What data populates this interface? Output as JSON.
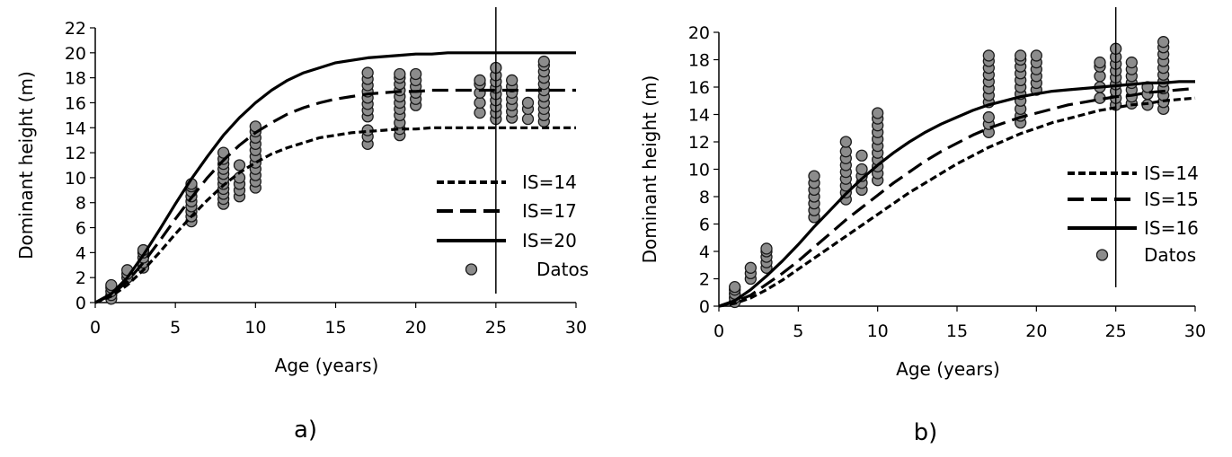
{
  "chart_data": [
    {
      "type": "scatter",
      "caption": "a)",
      "xlabel": "Age (years)",
      "ylabel": "Dominant height (m)",
      "xlim": [
        0,
        30
      ],
      "ylim": [
        0,
        22
      ],
      "xticks": [
        0,
        5,
        10,
        15,
        20,
        25,
        30
      ],
      "yticks": [
        0,
        2,
        4,
        6,
        8,
        10,
        12,
        14,
        16,
        18,
        20,
        22
      ],
      "grid": false,
      "legend": "right",
      "vertical_line_x": 25,
      "curve_x": [
        0,
        1,
        2,
        3,
        4,
        5,
        6,
        7,
        8,
        9,
        10,
        11,
        12,
        13,
        14,
        15,
        16,
        17,
        18,
        19,
        20,
        21,
        22,
        23,
        24,
        25,
        26,
        27,
        28,
        29,
        30
      ],
      "series": [
        {
          "name": "IS=14",
          "style": "dotted",
          "values": [
            0,
            0.5,
            1.4,
            2.6,
            4.0,
            5.5,
            6.9,
            8.2,
            9.4,
            10.4,
            11.2,
            11.9,
            12.4,
            12.8,
            13.2,
            13.4,
            13.6,
            13.7,
            13.8,
            13.9,
            13.9,
            14.0,
            14.0,
            14.0,
            14.0,
            14.0,
            14.0,
            14.0,
            14.0,
            14.0,
            14.0
          ]
        },
        {
          "name": "IS=17",
          "style": "dashed",
          "values": [
            0,
            0.6,
            1.7,
            3.2,
            4.9,
            6.7,
            8.4,
            10.0,
            11.4,
            12.6,
            13.6,
            14.4,
            15.1,
            15.6,
            16.0,
            16.3,
            16.5,
            16.7,
            16.8,
            16.9,
            16.9,
            17.0,
            17.0,
            17.0,
            17.0,
            17.0,
            17.0,
            17.0,
            17.0,
            17.0,
            17.0
          ]
        },
        {
          "name": "IS=20",
          "style": "solid",
          "values": [
            0,
            0.7,
            2.0,
            3.8,
            5.8,
            7.9,
            9.9,
            11.7,
            13.4,
            14.8,
            16.0,
            17.0,
            17.8,
            18.4,
            18.8,
            19.2,
            19.4,
            19.6,
            19.7,
            19.8,
            19.9,
            19.9,
            20.0,
            20.0,
            20.0,
            20.0,
            20.0,
            20.0,
            20.0,
            20.0,
            20.0
          ]
        }
      ],
      "points_name": "Datos",
      "points": [
        [
          1,
          0.3
        ],
        [
          1,
          0.6
        ],
        [
          1,
          0.9
        ],
        [
          1,
          1.2
        ],
        [
          1,
          1.4
        ],
        [
          2,
          2.0
        ],
        [
          2,
          2.3
        ],
        [
          2,
          2.6
        ],
        [
          3,
          2.8
        ],
        [
          3,
          3.2
        ],
        [
          3,
          3.6
        ],
        [
          3,
          4.0
        ],
        [
          3,
          4.2
        ],
        [
          6,
          6.5
        ],
        [
          6,
          6.9
        ],
        [
          6,
          7.3
        ],
        [
          6,
          7.7
        ],
        [
          6,
          8.1
        ],
        [
          6,
          8.5
        ],
        [
          6,
          8.9
        ],
        [
          6,
          9.3
        ],
        [
          6,
          9.5
        ],
        [
          8,
          7.9
        ],
        [
          8,
          8.3
        ],
        [
          8,
          8.7
        ],
        [
          8,
          9.1
        ],
        [
          8,
          9.5
        ],
        [
          8,
          9.9
        ],
        [
          8,
          10.3
        ],
        [
          8,
          10.7
        ],
        [
          8,
          11.1
        ],
        [
          8,
          11.5
        ],
        [
          8,
          12.0
        ],
        [
          9,
          8.5
        ],
        [
          9,
          9.0
        ],
        [
          9,
          9.5
        ],
        [
          9,
          10.0
        ],
        [
          9,
          11.0
        ],
        [
          10,
          9.2
        ],
        [
          10,
          9.7
        ],
        [
          10,
          10.2
        ],
        [
          10,
          10.7
        ],
        [
          10,
          11.2
        ],
        [
          10,
          11.7
        ],
        [
          10,
          12.2
        ],
        [
          10,
          12.7
        ],
        [
          10,
          13.2
        ],
        [
          10,
          13.7
        ],
        [
          10,
          14.1
        ],
        [
          17,
          12.7
        ],
        [
          17,
          13.3
        ],
        [
          17,
          13.8
        ],
        [
          17,
          14.9
        ],
        [
          17,
          15.4
        ],
        [
          17,
          15.9
        ],
        [
          17,
          16.4
        ],
        [
          17,
          16.9
        ],
        [
          17,
          17.4
        ],
        [
          17,
          17.9
        ],
        [
          17,
          18.4
        ],
        [
          19,
          13.4
        ],
        [
          19,
          13.9
        ],
        [
          19,
          14.4
        ],
        [
          19,
          15.0
        ],
        [
          19,
          15.5
        ],
        [
          19,
          16.0
        ],
        [
          19,
          16.5
        ],
        [
          19,
          17.0
        ],
        [
          19,
          17.5
        ],
        [
          19,
          18.0
        ],
        [
          19,
          18.3
        ],
        [
          20,
          15.8
        ],
        [
          20,
          16.3
        ],
        [
          20,
          16.8
        ],
        [
          20,
          17.3
        ],
        [
          20,
          17.8
        ],
        [
          20,
          18.3
        ],
        [
          24,
          15.2
        ],
        [
          24,
          16.0
        ],
        [
          24,
          16.8
        ],
        [
          24,
          17.5
        ],
        [
          24,
          17.8
        ],
        [
          25,
          14.7
        ],
        [
          25,
          15.2
        ],
        [
          25,
          15.7
        ],
        [
          25,
          16.2
        ],
        [
          25,
          16.7
        ],
        [
          25,
          17.2
        ],
        [
          25,
          17.7
        ],
        [
          25,
          18.2
        ],
        [
          25,
          18.8
        ],
        [
          26,
          14.8
        ],
        [
          26,
          15.3
        ],
        [
          26,
          15.8
        ],
        [
          26,
          16.3
        ],
        [
          26,
          16.8
        ],
        [
          26,
          17.3
        ],
        [
          26,
          17.8
        ],
        [
          27,
          14.7
        ],
        [
          27,
          15.5
        ],
        [
          27,
          16.0
        ],
        [
          28,
          14.5
        ],
        [
          28,
          15.0
        ],
        [
          28,
          15.5
        ],
        [
          28,
          16.0
        ],
        [
          28,
          16.5
        ],
        [
          28,
          17.0
        ],
        [
          28,
          17.5
        ],
        [
          28,
          18.0
        ],
        [
          28,
          18.5
        ],
        [
          28,
          19.0
        ],
        [
          28,
          19.3
        ]
      ]
    },
    {
      "type": "scatter",
      "caption": "b)",
      "xlabel": "Age (years)",
      "ylabel": "Dominant height (m)",
      "xlim": [
        0,
        30
      ],
      "ylim": [
        0,
        20
      ],
      "xticks": [
        0,
        5,
        10,
        15,
        20,
        25,
        30
      ],
      "yticks": [
        0,
        2,
        4,
        6,
        8,
        10,
        12,
        14,
        16,
        18,
        20
      ],
      "grid": false,
      "legend": "right",
      "vertical_line_x": 25,
      "curve_x": [
        0,
        1,
        2,
        3,
        4,
        5,
        6,
        7,
        8,
        9,
        10,
        11,
        12,
        13,
        14,
        15,
        16,
        17,
        18,
        19,
        20,
        21,
        22,
        23,
        24,
        25,
        26,
        27,
        28,
        29,
        30
      ],
      "series": [
        {
          "name": "IS=14",
          "style": "dotted",
          "values": [
            0,
            0.2,
            0.6,
            1.2,
            1.9,
            2.7,
            3.5,
            4.3,
            5.1,
            5.9,
            6.7,
            7.5,
            8.3,
            9.0,
            9.7,
            10.4,
            11.0,
            11.6,
            12.1,
            12.6,
            13.0,
            13.4,
            13.7,
            14.0,
            14.3,
            14.5,
            14.7,
            14.8,
            15.0,
            15.1,
            15.2
          ]
        },
        {
          "name": "IS=15",
          "style": "dashed",
          "values": [
            0,
            0.3,
            0.8,
            1.6,
            2.4,
            3.3,
            4.3,
            5.3,
            6.3,
            7.2,
            8.1,
            9.0,
            9.8,
            10.6,
            11.3,
            11.9,
            12.5,
            13.0,
            13.4,
            13.8,
            14.1,
            14.4,
            14.7,
            14.9,
            15.1,
            15.3,
            15.4,
            15.6,
            15.7,
            15.8,
            15.9
          ]
        },
        {
          "name": "IS=16",
          "style": "solid",
          "values": [
            0,
            0.4,
            1.2,
            2.2,
            3.3,
            4.5,
            5.8,
            7.0,
            8.2,
            9.3,
            10.3,
            11.2,
            12.0,
            12.7,
            13.3,
            13.8,
            14.3,
            14.7,
            15.0,
            15.3,
            15.5,
            15.7,
            15.8,
            15.9,
            16.0,
            16.1,
            16.2,
            16.3,
            16.3,
            16.4,
            16.4
          ]
        }
      ],
      "points_name": "Datos",
      "points": [
        [
          1,
          0.3
        ],
        [
          1,
          0.6
        ],
        [
          1,
          0.9
        ],
        [
          1,
          1.2
        ],
        [
          1,
          1.4
        ],
        [
          2,
          2.0
        ],
        [
          2,
          2.4
        ],
        [
          2,
          2.8
        ],
        [
          3,
          2.8
        ],
        [
          3,
          3.2
        ],
        [
          3,
          3.6
        ],
        [
          3,
          4.0
        ],
        [
          3,
          4.2
        ],
        [
          6,
          6.5
        ],
        [
          6,
          7.0
        ],
        [
          6,
          7.5
        ],
        [
          6,
          8.0
        ],
        [
          6,
          8.5
        ],
        [
          6,
          9.0
        ],
        [
          6,
          9.5
        ],
        [
          8,
          7.8
        ],
        [
          8,
          8.3
        ],
        [
          8,
          8.8
        ],
        [
          8,
          9.3
        ],
        [
          8,
          9.8
        ],
        [
          8,
          10.3
        ],
        [
          8,
          10.8
        ],
        [
          8,
          11.3
        ],
        [
          8,
          12.0
        ],
        [
          9,
          8.5
        ],
        [
          9,
          9.0
        ],
        [
          9,
          9.5
        ],
        [
          9,
          10.0
        ],
        [
          9,
          11.0
        ],
        [
          10,
          9.2
        ],
        [
          10,
          9.7
        ],
        [
          10,
          10.2
        ],
        [
          10,
          10.7
        ],
        [
          10,
          11.2
        ],
        [
          10,
          11.7
        ],
        [
          10,
          12.2
        ],
        [
          10,
          12.7
        ],
        [
          10,
          13.2
        ],
        [
          10,
          13.7
        ],
        [
          10,
          14.1
        ],
        [
          17,
          12.7
        ],
        [
          17,
          13.3
        ],
        [
          17,
          13.8
        ],
        [
          17,
          14.9
        ],
        [
          17,
          15.4
        ],
        [
          17,
          15.9
        ],
        [
          17,
          16.4
        ],
        [
          17,
          16.9
        ],
        [
          17,
          17.4
        ],
        [
          17,
          17.9
        ],
        [
          17,
          18.3
        ],
        [
          19,
          13.4
        ],
        [
          19,
          13.9
        ],
        [
          19,
          14.4
        ],
        [
          19,
          15.0
        ],
        [
          19,
          15.5
        ],
        [
          19,
          16.0
        ],
        [
          19,
          16.5
        ],
        [
          19,
          17.0
        ],
        [
          19,
          17.5
        ],
        [
          19,
          18.0
        ],
        [
          19,
          18.3
        ],
        [
          20,
          15.8
        ],
        [
          20,
          16.3
        ],
        [
          20,
          16.8
        ],
        [
          20,
          17.3
        ],
        [
          20,
          17.8
        ],
        [
          20,
          18.3
        ],
        [
          24,
          15.2
        ],
        [
          24,
          16.0
        ],
        [
          24,
          16.8
        ],
        [
          24,
          17.5
        ],
        [
          24,
          17.8
        ],
        [
          25,
          14.7
        ],
        [
          25,
          15.2
        ],
        [
          25,
          15.7
        ],
        [
          25,
          16.2
        ],
        [
          25,
          16.7
        ],
        [
          25,
          17.2
        ],
        [
          25,
          17.7
        ],
        [
          25,
          18.2
        ],
        [
          25,
          18.8
        ],
        [
          26,
          14.8
        ],
        [
          26,
          15.3
        ],
        [
          26,
          15.8
        ],
        [
          26,
          16.3
        ],
        [
          26,
          16.8
        ],
        [
          26,
          17.3
        ],
        [
          26,
          17.8
        ],
        [
          27,
          14.7
        ],
        [
          27,
          15.5
        ],
        [
          27,
          16.0
        ],
        [
          28,
          14.4
        ],
        [
          28,
          14.9
        ],
        [
          28,
          15.4
        ],
        [
          28,
          15.9
        ],
        [
          28,
          16.4
        ],
        [
          28,
          16.9
        ],
        [
          28,
          17.4
        ],
        [
          28,
          17.9
        ],
        [
          28,
          18.4
        ],
        [
          28,
          18.9
        ],
        [
          28,
          19.3
        ]
      ]
    }
  ]
}
